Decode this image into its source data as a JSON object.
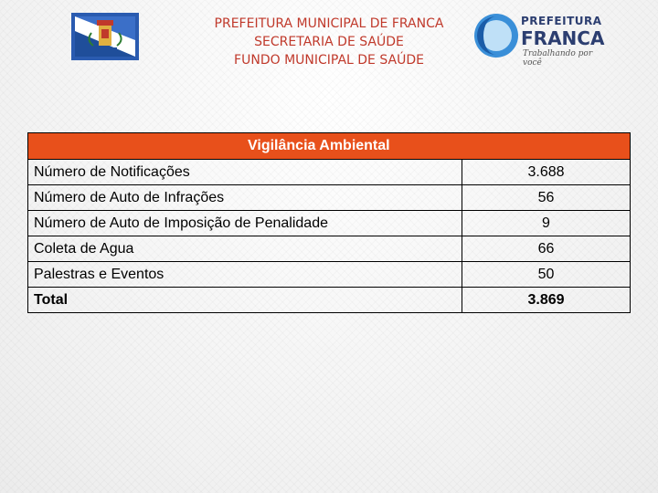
{
  "header": {
    "line1": "PREFEITURA MUNICIPAL DE FRANCA",
    "line2": "SECRETARIA DE SAÚDE",
    "line3": "FUNDO MUNICIPAL DE SAÚDE",
    "crest_icon": "franca-coat-of-arms-icon",
    "logo": {
      "word1": "PREFEITURA",
      "word2": "FRANCA",
      "slogan": "Trabalhando por você"
    }
  },
  "table": {
    "title": "Vigilância Ambiental",
    "rows": [
      {
        "label": "Número de Notificações",
        "value": "3.688"
      },
      {
        "label": "Número de Auto de Infrações",
        "value": "56"
      },
      {
        "label": "Número de Auto de Imposição de Penalidade",
        "value": "9"
      },
      {
        "label": "Coleta de Agua",
        "value": "66"
      },
      {
        "label": "Palestras e Eventos",
        "value": "50"
      }
    ],
    "total": {
      "label": "Total",
      "value": "3.869"
    }
  },
  "colors": {
    "header_text": "#c0392b",
    "table_title_bg": "#e8501b",
    "crest_bg": "#2a5bb0"
  }
}
